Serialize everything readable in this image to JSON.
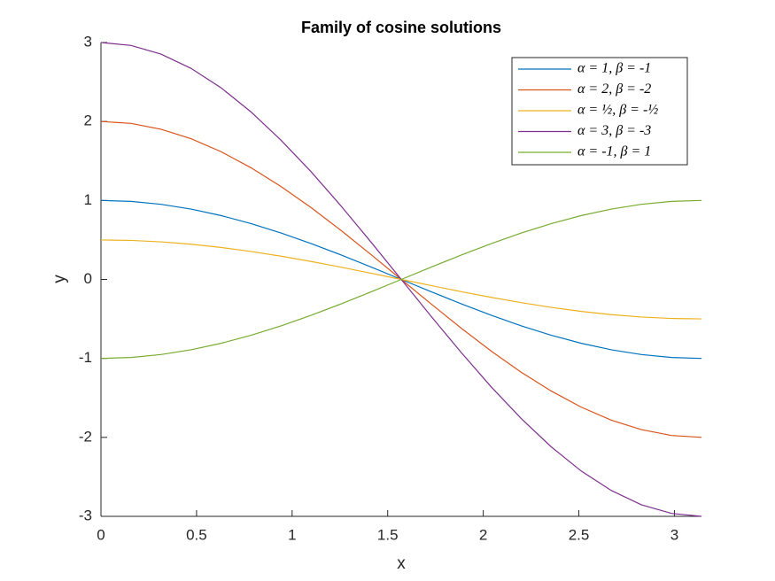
{
  "chart_data": {
    "type": "line",
    "title": "Family of cosine solutions",
    "x_label": "x",
    "y_label": "y",
    "x": [
      0,
      0.157,
      0.314,
      0.471,
      0.628,
      0.785,
      0.942,
      1.1,
      1.257,
      1.414,
      1.571,
      1.728,
      1.885,
      2.042,
      2.199,
      2.356,
      2.513,
      2.67,
      2.827,
      2.985,
      3.142
    ],
    "series": [
      {
        "name": "α = 1, β = -1",
        "color": "#0072bd",
        "values": [
          1,
          0.988,
          0.951,
          0.891,
          0.809,
          0.707,
          0.588,
          0.454,
          0.309,
          0.156,
          0,
          -0.156,
          -0.309,
          -0.454,
          -0.588,
          -0.707,
          -0.809,
          -0.891,
          -0.951,
          -0.988,
          -1
        ]
      },
      {
        "name": "α = 2, β = -2",
        "color": "#d95319",
        "values": [
          2,
          1.976,
          1.902,
          1.782,
          1.618,
          1.414,
          1.176,
          0.908,
          0.618,
          0.312,
          0,
          -0.312,
          -0.618,
          -0.908,
          -1.176,
          -1.414,
          -1.618,
          -1.782,
          -1.902,
          -1.976,
          -2
        ]
      },
      {
        "name": "α = ½, β = -½",
        "color": "#edb120",
        "values": [
          0.5,
          0.494,
          0.476,
          0.446,
          0.405,
          0.354,
          0.294,
          0.227,
          0.155,
          0.078,
          0,
          -0.078,
          -0.155,
          -0.227,
          -0.294,
          -0.354,
          -0.405,
          -0.446,
          -0.476,
          -0.494,
          -0.5
        ]
      },
      {
        "name": "α = 3, β = -3",
        "color": "#7e2f8e",
        "values": [
          3,
          2.963,
          2.853,
          2.673,
          2.427,
          2.121,
          1.763,
          1.362,
          0.927,
          0.469,
          0,
          -0.469,
          -0.927,
          -1.362,
          -1.763,
          -2.121,
          -2.427,
          -2.673,
          -2.853,
          -2.963,
          -3
        ]
      },
      {
        "name": "α = -1, β = 1",
        "color": "#77ac30",
        "values": [
          -1,
          -0.988,
          -0.951,
          -0.891,
          -0.809,
          -0.707,
          -0.588,
          -0.454,
          -0.309,
          -0.156,
          0,
          0.156,
          0.309,
          0.454,
          0.588,
          0.707,
          0.809,
          0.891,
          0.951,
          0.988,
          1
        ]
      }
    ],
    "xlim": [
      0,
      3.1416
    ],
    "xticks": [
      0,
      0.5,
      1,
      1.5,
      2,
      2.5,
      3
    ],
    "ylim": [
      -3,
      3
    ],
    "yticks": [
      -3,
      -2,
      -1,
      0,
      1,
      2,
      3
    ],
    "legend_position": "northeast"
  }
}
